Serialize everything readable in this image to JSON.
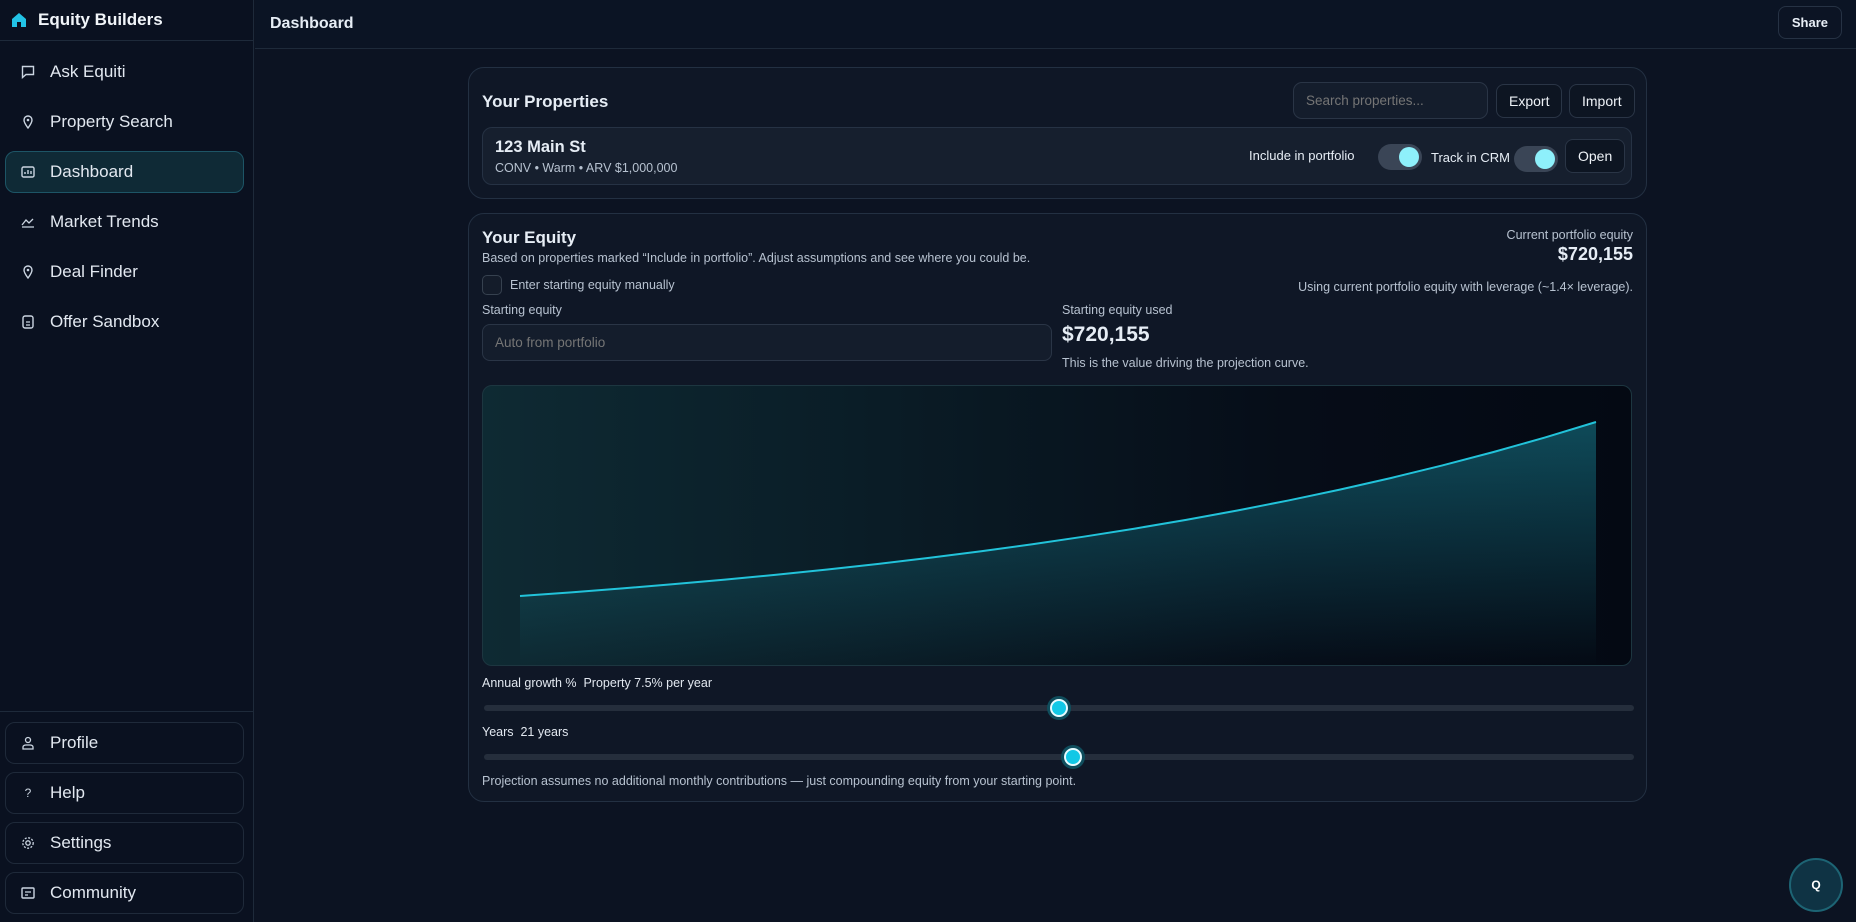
{
  "app": {
    "title": "Equity Builders"
  },
  "sidebar": {
    "items": [
      {
        "label": "Ask Equiti",
        "icon": "chat-icon"
      },
      {
        "label": "Property Search",
        "icon": "map-pin-icon"
      },
      {
        "label": "Dashboard",
        "icon": "chart-icon",
        "active": true
      },
      {
        "label": "Market Trends",
        "icon": "trend-icon"
      },
      {
        "label": "Deal Finder",
        "icon": "map-pin-icon"
      },
      {
        "label": "Offer Sandbox",
        "icon": "document-icon"
      }
    ],
    "bottom": [
      {
        "label": "Profile",
        "icon": "user-icon"
      },
      {
        "label": "Help",
        "icon": "question-icon"
      },
      {
        "label": "Settings",
        "icon": "gear-icon"
      },
      {
        "label": "Community",
        "icon": "card-icon"
      }
    ]
  },
  "header": {
    "title": "Dashboard",
    "share_label": "Share"
  },
  "properties": {
    "title": "Your Properties",
    "search_placeholder": "Search properties...",
    "export_label": "Export",
    "import_label": "Import",
    "items": [
      {
        "name": "123 Main St",
        "meta": "CONV • Warm • ARV $1,000,000",
        "include_label": "Include in portfolio",
        "include_on": true,
        "crm_label": "Track in CRM",
        "crm_on": true,
        "open_label": "Open"
      }
    ]
  },
  "equity": {
    "title": "Your Equity",
    "subtitle": "Based on properties marked “Include in portfolio”. Adjust assumptions and see where you could be.",
    "current_label": "Current portfolio equity",
    "current_value": "$720,155",
    "manual_label": "Enter starting equity manually",
    "manual_checked": false,
    "leverage_note": "Using current portfolio equity with leverage (~1.4× leverage).",
    "starting_label": "Starting equity",
    "starting_placeholder": "Auto from portfolio",
    "used_label": "Starting equity used",
    "used_value": "$720,155",
    "used_note": "This is the value driving the projection curve.",
    "growth_label": "Annual growth %",
    "growth_value": "Property 7.5% per year",
    "growth_position": 0.5,
    "years_label": "Years",
    "years_value": "21 years",
    "years_position": 0.512,
    "footnote": "Projection assumes no additional monthly contributions — just compounding equity from your starting point."
  },
  "chart_data": {
    "type": "area",
    "x": [
      0,
      1,
      2,
      3,
      4,
      5,
      6,
      7,
      8,
      9,
      10,
      11,
      12,
      13,
      14,
      15,
      16,
      17,
      18,
      19,
      20,
      21
    ],
    "values": [
      720155,
      774167,
      832229,
      894647,
      961745,
      1033876,
      1111417,
      1194773,
      1284381,
      1380710,
      1484263,
      1595583,
      1715251,
      1843895,
      1982187,
      2130851,
      2290665,
      2462465,
      2647150,
      2845686,
      3059112,
      3288545
    ],
    "color": "#22c3da",
    "grid": false
  },
  "fab": {
    "label": "Q"
  },
  "colors": {
    "accent": "#22d3ee",
    "background": "#0c1322"
  }
}
